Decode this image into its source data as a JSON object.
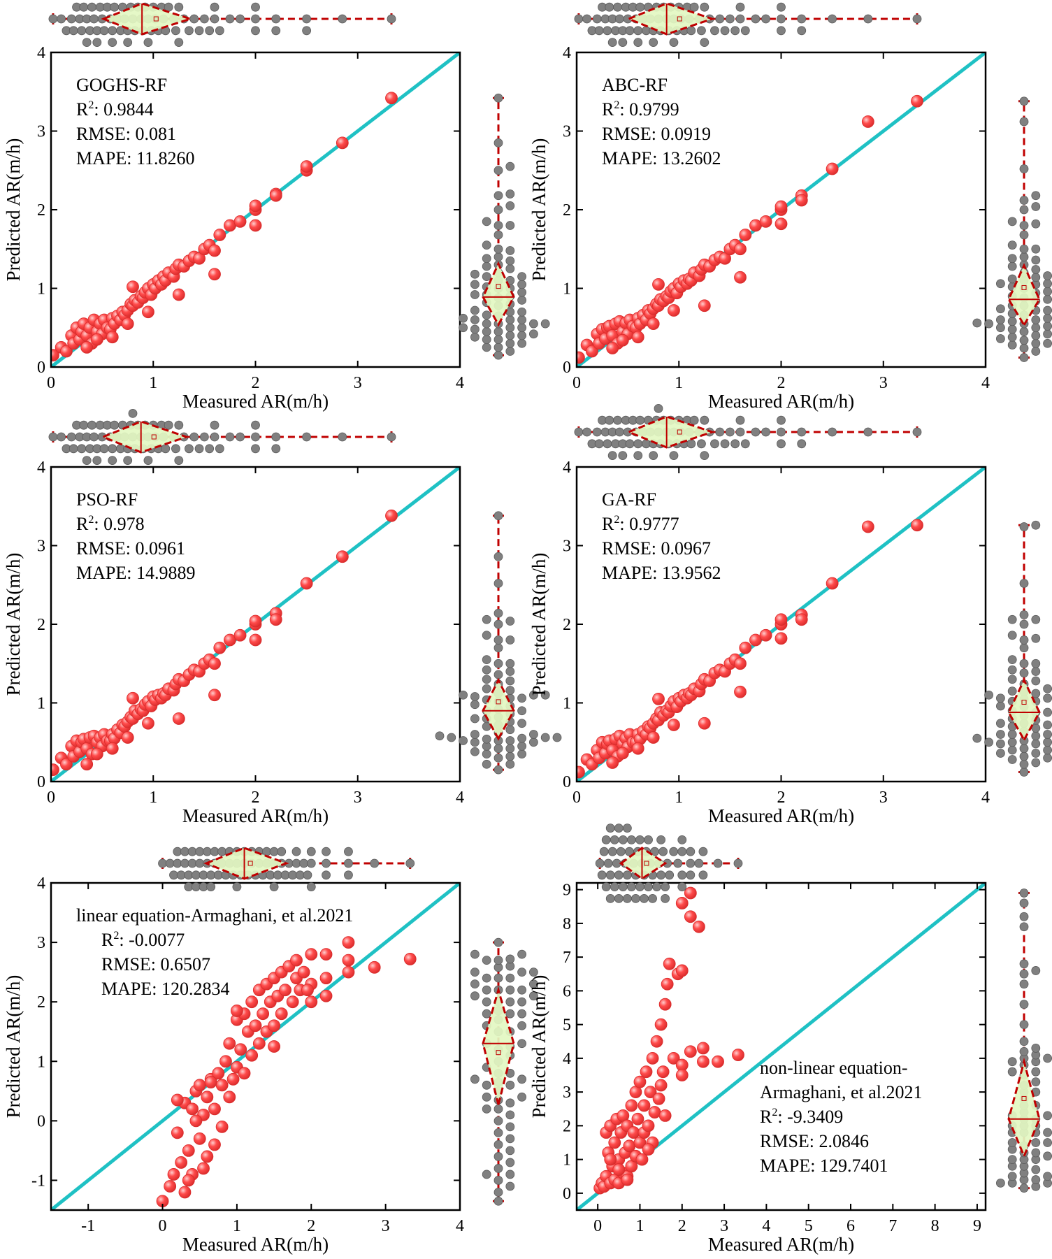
{
  "figure": {
    "description_label": "Measured vs predicted advance rate panels"
  },
  "colors": {
    "identity_line": "#1fc1c4",
    "point_fill": "#ff4b4b",
    "point_stroke": "#d92b2b",
    "marginal_point": "#808080",
    "diamond_fill": "#e3f7c2",
    "diamond_stroke": "#c00000"
  },
  "chart_data": [
    {
      "type": "scatter",
      "id": "goghs-rf",
      "xlabel": "Measured AR(m/h)",
      "ylabel": "Predicted AR(m/h)",
      "xlim": [
        0,
        4
      ],
      "ylim": [
        0,
        4
      ],
      "xticks": [
        "0",
        "1",
        "2",
        "3",
        "4"
      ],
      "yticks": [
        "0",
        "1",
        "2",
        "3",
        "4"
      ],
      "annotation": [
        "GOGHS-RF",
        "R²: 0.9844",
        "RMSE:  0.081",
        "MAPE: 11.8260"
      ],
      "annotation_position": "top-left",
      "x": [
        0.02,
        0.1,
        0.15,
        0.2,
        0.22,
        0.25,
        0.28,
        0.3,
        0.32,
        0.35,
        0.38,
        0.4,
        0.42,
        0.45,
        0.48,
        0.5,
        0.52,
        0.55,
        0.58,
        0.6,
        0.62,
        0.65,
        0.68,
        0.7,
        0.72,
        0.75,
        0.78,
        0.8,
        0.82,
        0.85,
        0.88,
        0.9,
        0.92,
        0.95,
        0.98,
        1.0,
        1.02,
        1.05,
        1.08,
        1.1,
        1.12,
        1.15,
        1.2,
        1.22,
        1.25,
        1.3,
        1.35,
        1.4,
        1.45,
        1.5,
        1.55,
        1.6,
        1.65,
        1.75,
        1.85,
        2.0,
        2.0,
        2.0,
        2.2,
        2.2,
        2.5,
        2.5,
        2.85,
        3.33,
        0.35,
        0.45,
        0.6,
        0.75,
        0.8,
        0.95,
        1.25,
        1.6
      ],
      "y": [
        0.15,
        0.25,
        0.2,
        0.4,
        0.3,
        0.5,
        0.35,
        0.45,
        0.55,
        0.4,
        0.5,
        0.3,
        0.6,
        0.45,
        0.55,
        0.42,
        0.6,
        0.5,
        0.48,
        0.62,
        0.55,
        0.65,
        0.6,
        0.7,
        0.66,
        0.72,
        0.8,
        0.78,
        0.85,
        0.82,
        0.9,
        0.88,
        0.95,
        1.0,
        0.92,
        1.05,
        1.0,
        1.1,
        1.05,
        1.15,
        1.1,
        1.2,
        1.15,
        1.25,
        1.3,
        1.28,
        1.35,
        1.4,
        1.38,
        1.5,
        1.55,
        1.48,
        1.68,
        1.8,
        1.85,
        2.0,
        2.05,
        1.8,
        2.2,
        2.18,
        2.5,
        2.55,
        2.85,
        3.42,
        0.25,
        0.35,
        0.38,
        0.55,
        1.02,
        0.7,
        0.92,
        1.18
      ]
    },
    {
      "type": "scatter",
      "id": "abc-rf",
      "xlabel": "Measured AR(m/h)",
      "ylabel": "Predicted AR(m/h)",
      "xlim": [
        0,
        4
      ],
      "ylim": [
        0,
        4
      ],
      "xticks": [
        "0",
        "1",
        "2",
        "3",
        "4"
      ],
      "yticks": [
        "0",
        "1",
        "2",
        "3",
        "4"
      ],
      "annotation": [
        "ABC-RF",
        "R²: 0.9799",
        "RMSE:  0.0919",
        "MAPE: 13.2602"
      ],
      "annotation_position": "top-left",
      "x": [
        0.02,
        0.1,
        0.15,
        0.2,
        0.22,
        0.25,
        0.28,
        0.3,
        0.32,
        0.35,
        0.38,
        0.4,
        0.42,
        0.45,
        0.48,
        0.5,
        0.52,
        0.55,
        0.58,
        0.6,
        0.62,
        0.65,
        0.68,
        0.7,
        0.72,
        0.75,
        0.78,
        0.8,
        0.82,
        0.85,
        0.88,
        0.9,
        0.92,
        0.95,
        0.98,
        1.0,
        1.02,
        1.05,
        1.08,
        1.1,
        1.12,
        1.15,
        1.2,
        1.22,
        1.25,
        1.3,
        1.35,
        1.4,
        1.45,
        1.5,
        1.55,
        1.6,
        1.65,
        1.75,
        1.85,
        2.0,
        2.0,
        2.0,
        2.2,
        2.2,
        2.5,
        2.85,
        3.33,
        0.35,
        0.45,
        0.6,
        0.75,
        0.8,
        0.95,
        1.25,
        1.6
      ],
      "y": [
        0.12,
        0.28,
        0.2,
        0.42,
        0.3,
        0.48,
        0.36,
        0.5,
        0.52,
        0.4,
        0.55,
        0.3,
        0.58,
        0.45,
        0.56,
        0.42,
        0.6,
        0.52,
        0.5,
        0.62,
        0.55,
        0.66,
        0.6,
        0.72,
        0.68,
        0.74,
        0.8,
        0.78,
        0.86,
        0.84,
        0.9,
        0.88,
        0.96,
        1.0,
        0.94,
        1.06,
        1.02,
        1.1,
        1.06,
        1.12,
        1.1,
        1.2,
        1.16,
        1.24,
        1.3,
        1.28,
        1.36,
        1.4,
        1.38,
        1.5,
        1.55,
        1.5,
        1.68,
        1.8,
        1.85,
        2.0,
        2.04,
        1.82,
        2.18,
        2.12,
        2.52,
        3.12,
        3.38,
        0.24,
        0.34,
        0.38,
        0.55,
        1.05,
        0.72,
        0.78,
        1.14
      ]
    },
    {
      "type": "scatter",
      "id": "pso-rf",
      "xlabel": "Measured AR(m/h)",
      "ylabel": "Predicted AR(m/h)",
      "xlim": [
        0,
        4
      ],
      "ylim": [
        0,
        4
      ],
      "xticks": [
        "0",
        "1",
        "2",
        "3",
        "4"
      ],
      "yticks": [
        "0",
        "1",
        "2",
        "3",
        "4"
      ],
      "annotation": [
        "PSO-RF",
        "R²: 0.978",
        "RMSE:  0.0961",
        "MAPE: 14.9889"
      ],
      "annotation_position": "top-left",
      "x": [
        0.02,
        0.1,
        0.15,
        0.2,
        0.22,
        0.25,
        0.28,
        0.3,
        0.32,
        0.35,
        0.38,
        0.4,
        0.42,
        0.45,
        0.48,
        0.5,
        0.52,
        0.55,
        0.58,
        0.6,
        0.62,
        0.65,
        0.68,
        0.7,
        0.72,
        0.75,
        0.78,
        0.8,
        0.82,
        0.85,
        0.88,
        0.9,
        0.92,
        0.95,
        0.98,
        1.0,
        1.02,
        1.05,
        1.08,
        1.1,
        1.12,
        1.15,
        1.2,
        1.22,
        1.25,
        1.3,
        1.35,
        1.4,
        1.45,
        1.5,
        1.55,
        1.6,
        1.65,
        1.75,
        1.85,
        2.0,
        2.0,
        2.0,
        2.2,
        2.2,
        2.5,
        2.85,
        3.33,
        0.35,
        0.45,
        0.6,
        0.75,
        0.8,
        0.95,
        1.25,
        1.6
      ],
      "y": [
        0.15,
        0.3,
        0.22,
        0.45,
        0.32,
        0.52,
        0.38,
        0.5,
        0.54,
        0.42,
        0.56,
        0.35,
        0.58,
        0.5,
        0.56,
        0.45,
        0.6,
        0.52,
        0.52,
        0.6,
        0.55,
        0.66,
        0.62,
        0.72,
        0.7,
        0.76,
        0.82,
        0.8,
        0.9,
        0.86,
        0.92,
        0.9,
        0.98,
        1.02,
        0.96,
        1.08,
        1.04,
        1.1,
        1.06,
        1.12,
        1.1,
        1.18,
        1.16,
        1.24,
        1.3,
        1.28,
        1.36,
        1.42,
        1.4,
        1.5,
        1.55,
        1.5,
        1.7,
        1.8,
        1.86,
        2.0,
        2.04,
        1.8,
        2.14,
        2.06,
        2.52,
        2.86,
        3.38,
        0.22,
        0.35,
        0.42,
        0.56,
        1.06,
        0.74,
        0.8,
        1.1
      ]
    },
    {
      "type": "scatter",
      "id": "ga-rf",
      "xlabel": "Measured AR(m/h)",
      "ylabel": "Predicted AR(m/h)",
      "xlim": [
        0,
        4
      ],
      "ylim": [
        0,
        4
      ],
      "xticks": [
        "0",
        "1",
        "2",
        "3",
        "4"
      ],
      "yticks": [
        "0",
        "1",
        "2",
        "3",
        "4"
      ],
      "annotation": [
        "GA-RF",
        "R²: 0.9777",
        "RMSE:  0.0967",
        "MAPE: 13.9562"
      ],
      "annotation_position": "top-left",
      "x": [
        0.02,
        0.1,
        0.15,
        0.2,
        0.22,
        0.25,
        0.28,
        0.3,
        0.32,
        0.35,
        0.38,
        0.4,
        0.42,
        0.45,
        0.48,
        0.5,
        0.52,
        0.55,
        0.58,
        0.6,
        0.62,
        0.65,
        0.68,
        0.7,
        0.72,
        0.75,
        0.78,
        0.8,
        0.82,
        0.85,
        0.88,
        0.9,
        0.92,
        0.95,
        0.98,
        1.0,
        1.02,
        1.05,
        1.08,
        1.1,
        1.12,
        1.15,
        1.2,
        1.22,
        1.25,
        1.3,
        1.35,
        1.4,
        1.45,
        1.5,
        1.55,
        1.6,
        1.65,
        1.75,
        1.85,
        2.0,
        2.0,
        2.0,
        2.2,
        2.2,
        2.5,
        2.85,
        3.33,
        0.35,
        0.45,
        0.6,
        0.75,
        0.8,
        0.95,
        1.25,
        1.6
      ],
      "y": [
        0.12,
        0.28,
        0.22,
        0.4,
        0.3,
        0.5,
        0.36,
        0.48,
        0.52,
        0.4,
        0.54,
        0.32,
        0.58,
        0.48,
        0.55,
        0.44,
        0.6,
        0.5,
        0.5,
        0.6,
        0.54,
        0.64,
        0.6,
        0.7,
        0.68,
        0.74,
        0.8,
        0.78,
        0.88,
        0.84,
        0.9,
        0.88,
        0.96,
        1.02,
        0.95,
        1.06,
        1.02,
        1.1,
        1.06,
        1.12,
        1.1,
        1.18,
        1.15,
        1.24,
        1.3,
        1.28,
        1.38,
        1.42,
        1.4,
        1.5,
        1.55,
        1.5,
        1.7,
        1.8,
        1.86,
        2.0,
        2.06,
        1.82,
        2.12,
        2.06,
        2.52,
        3.24,
        3.26,
        0.24,
        0.36,
        0.42,
        0.56,
        1.05,
        0.72,
        0.74,
        1.14
      ]
    },
    {
      "type": "scatter",
      "id": "linear-eq",
      "xlabel": "Measured AR(m/h)",
      "ylabel": "Predicted AR(m/h)",
      "xlim": [
        -1.5,
        4
      ],
      "ylim": [
        -1.5,
        4
      ],
      "xticks": [
        "-1",
        "0",
        "1",
        "2",
        "3",
        "4"
      ],
      "yticks": [
        "-1",
        "0",
        "1",
        "2",
        "3",
        "4"
      ],
      "annotation": [
        "linear equation-Armaghani, et al.2021",
        "R²: -0.0077",
        "RMSE:  0.6507",
        "MAPE: 120.2834"
      ],
      "annotation_position": "top-left",
      "x": [
        0.0,
        0.1,
        0.15,
        0.2,
        0.25,
        0.3,
        0.3,
        0.35,
        0.4,
        0.4,
        0.45,
        0.5,
        0.5,
        0.55,
        0.6,
        0.6,
        0.65,
        0.7,
        0.7,
        0.75,
        0.8,
        0.8,
        0.85,
        0.9,
        0.9,
        0.95,
        1.0,
        1.0,
        1.05,
        1.1,
        1.1,
        1.15,
        1.2,
        1.2,
        1.25,
        1.3,
        1.3,
        1.35,
        1.4,
        1.4,
        1.45,
        1.5,
        1.5,
        1.55,
        1.6,
        1.6,
        1.65,
        1.7,
        1.75,
        1.8,
        1.8,
        1.85,
        1.9,
        2.0,
        2.0,
        2.0,
        2.2,
        2.2,
        2.2,
        2.5,
        2.5,
        2.5,
        2.85,
        3.33,
        0.2,
        0.35,
        0.45,
        0.55,
        0.65,
        1.0,
        1.5,
        1.95
      ],
      "y": [
        -1.35,
        -1.1,
        -0.9,
        -0.2,
        -0.7,
        -1.2,
        0.3,
        -0.5,
        0.2,
        -0.9,
        0.5,
        -0.3,
        0.6,
        0.1,
        -0.6,
        0.4,
        0.7,
        0.2,
        -0.4,
        0.8,
        0.6,
        -0.1,
        1.0,
        0.4,
        1.3,
        0.7,
        1.7,
        0.9,
        1.2,
        1.8,
        0.8,
        1.5,
        1.1,
        2.0,
        1.6,
        1.3,
        2.2,
        1.8,
        1.5,
        2.3,
        2.0,
        1.6,
        2.4,
        2.1,
        1.8,
        2.5,
        2.2,
        2.6,
        2.0,
        2.4,
        2.7,
        2.2,
        2.5,
        2.8,
        2.3,
        2.0,
        2.8,
        2.4,
        2.1,
        3.0,
        2.7,
        2.5,
        2.58,
        2.72,
        0.35,
        -1.0,
        0.0,
        -0.8,
        0.65,
        1.85,
        1.25,
        2.2
      ]
    },
    {
      "type": "scatter",
      "id": "non-linear-eq",
      "xlabel": "Measured AR(m/h)",
      "ylabel": "Predicted AR(m/h)",
      "xlim": [
        -0.5,
        9.2
      ],
      "ylim": [
        -0.5,
        9.2
      ],
      "xticks": [
        "0",
        "1",
        "2",
        "3",
        "4",
        "5",
        "6",
        "7",
        "8",
        "9"
      ],
      "yticks": [
        "0",
        "1",
        "2",
        "3",
        "4",
        "5",
        "6",
        "7",
        "8",
        "9"
      ],
      "annotation": [
        "non-linear equation-",
        "Armaghani, et al.2021",
        "R²: -9.3409",
        "RMSE:  2.0846",
        "MAPE: 129.7401"
      ],
      "annotation_position": "bottom-right",
      "x": [
        0.05,
        0.1,
        0.15,
        0.2,
        0.2,
        0.25,
        0.3,
        0.3,
        0.35,
        0.4,
        0.4,
        0.45,
        0.5,
        0.5,
        0.55,
        0.6,
        0.6,
        0.65,
        0.7,
        0.7,
        0.75,
        0.8,
        0.8,
        0.85,
        0.9,
        0.9,
        0.95,
        1.0,
        1.0,
        1.05,
        1.1,
        1.1,
        1.15,
        1.2,
        1.25,
        1.3,
        1.3,
        1.35,
        1.4,
        1.45,
        1.5,
        1.5,
        1.55,
        1.6,
        1.65,
        1.7,
        1.8,
        1.9,
        2.0,
        2.0,
        2.0,
        2.2,
        2.2,
        2.2,
        2.5,
        2.5,
        2.85,
        3.33,
        0.3,
        0.5,
        0.7,
        1.2,
        1.6,
        2.0,
        2.4
      ],
      "y": [
        0.15,
        0.3,
        0.2,
        1.8,
        0.5,
        1.2,
        0.3,
        2.0,
        0.8,
        1.5,
        0.4,
        2.2,
        1.0,
        0.3,
        1.8,
        0.6,
        2.3,
        1.2,
        0.5,
        2.0,
        1.4,
        2.6,
        0.8,
        1.8,
        3.0,
        1.1,
        2.2,
        1.5,
        3.3,
        1.0,
        2.6,
        1.8,
        3.6,
        2.0,
        3.0,
        1.5,
        4.0,
        2.4,
        4.5,
        2.8,
        3.2,
        5.0,
        3.6,
        5.6,
        6.2,
        6.8,
        4.0,
        6.5,
        8.6,
        3.8,
        3.5,
        8.2,
        8.9,
        4.2,
        4.3,
        3.9,
        3.9,
        4.1,
        1.0,
        0.7,
        0.4,
        1.3,
        2.3,
        6.6,
        7.9
      ]
    }
  ]
}
